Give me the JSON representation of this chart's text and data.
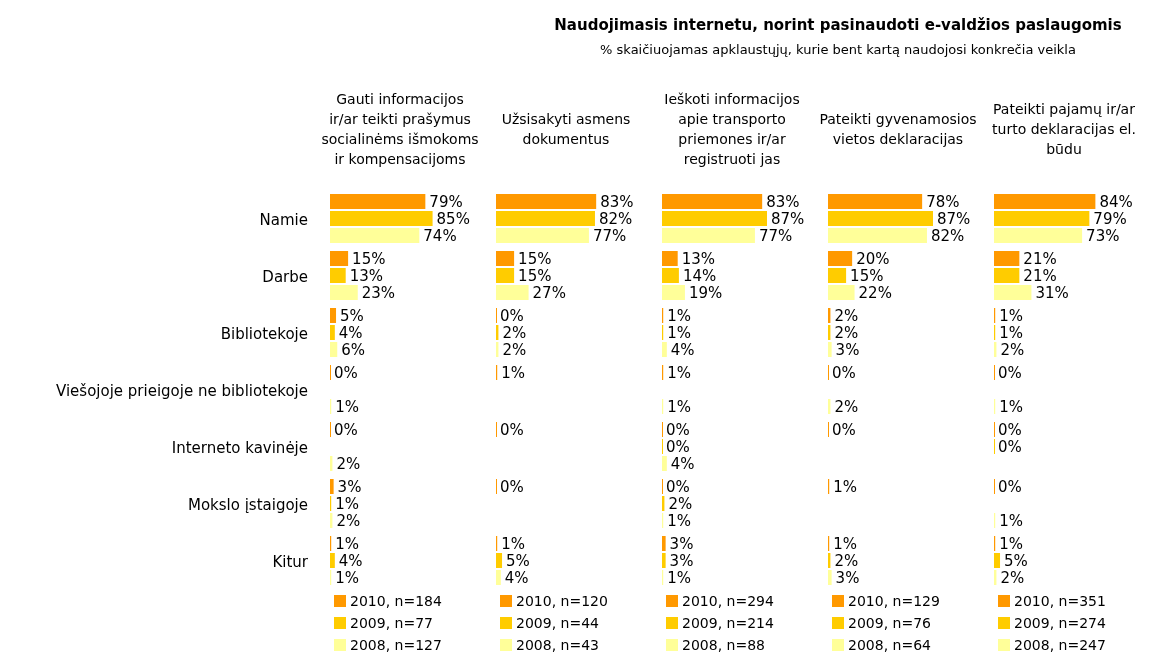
{
  "chart_data": [
    {
      "type": "bar",
      "orientation": "horizontal",
      "title": "Gauti informacijos ir/ar teikti prašymus socialinėms išmokoms ir kompensacijoms",
      "annotations": [
        "Naudojimasis internetu, norint pasinaudoti e-valdžios paslaugomis",
        "% skaičiuojamas apklaustųjų, kurie bent kartą naudojosi konkrečia veikla"
      ],
      "categories": [
        "Namie",
        "Darbe",
        "Bibliotekoje",
        "Viešojoje prieigoje ne bibliotekoje",
        "Interneto kavinėje",
        "Mokslo įstaigoje",
        "Kitur"
      ],
      "tick_labels": "y",
      "legend": "bottom",
      "data_labels": true,
      "series": [
        {
          "name": "2010, n=184",
          "color": "#ff9900",
          "values": [
            79,
            15,
            5,
            0,
            0,
            3,
            1
          ],
          "value_labels": [
            "79%",
            "15%",
            "5%",
            "0%",
            "0%",
            "3%",
            "1%"
          ]
        },
        {
          "name": "2009, n=77",
          "color": "#ffcc00",
          "values": [
            85,
            13,
            4,
            null,
            null,
            1,
            4
          ],
          "value_labels": [
            "85%",
            "13%",
            "4%",
            null,
            null,
            "1%",
            "4%"
          ]
        },
        {
          "name": "2008, n=127",
          "color": "#ffff99",
          "values": [
            74,
            23,
            6,
            1,
            2,
            2,
            1
          ],
          "value_labels": [
            "74%",
            "23%",
            "6%",
            "1%",
            "2%",
            "2%",
            "1%"
          ]
        }
      ]
    },
    {
      "type": "bar",
      "orientation": "horizontal",
      "title": "Užsisakyti asmens dokumentus",
      "tick_labels": false,
      "legend": "bottom",
      "data_labels": true,
      "series": [
        {
          "name": "2010, n=120",
          "color": "#ff9900",
          "values": [
            83,
            15,
            0,
            1,
            0,
            0,
            1
          ],
          "value_labels": [
            "83%",
            "15%",
            "0%",
            "1%",
            "0%",
            "0%",
            "1%"
          ]
        },
        {
          "name": "2009, n=44",
          "color": "#ffcc00",
          "values": [
            82,
            15,
            2,
            null,
            null,
            null,
            5
          ],
          "value_labels": [
            "82%",
            "15%",
            "2%",
            null,
            null,
            null,
            "5%"
          ]
        },
        {
          "name": "2008, n=43",
          "color": "#ffff99",
          "values": [
            77,
            27,
            2,
            null,
            null,
            null,
            4
          ],
          "value_labels": [
            "77%",
            "27%",
            "2%",
            null,
            null,
            null,
            "4%"
          ]
        }
      ]
    },
    {
      "type": "bar",
      "orientation": "horizontal",
      "title": "Ieškoti informacijos apie transporto priemones ir/ar registruoti jas",
      "tick_labels": false,
      "legend": "bottom",
      "data_labels": true,
      "series": [
        {
          "name": "2010, n=294",
          "color": "#ff9900",
          "values": [
            83,
            13,
            1,
            1,
            0,
            0,
            3
          ],
          "value_labels": [
            "83%",
            "13%",
            "1%",
            "1%",
            "0%",
            "0%",
            "3%"
          ]
        },
        {
          "name": "2009, n=214",
          "color": "#ffcc00",
          "values": [
            87,
            14,
            1,
            null,
            0,
            2,
            3
          ],
          "value_labels": [
            "87%",
            "14%",
            "1%",
            null,
            "0%",
            "2%",
            "3%"
          ]
        },
        {
          "name": "2008, n=88",
          "color": "#ffff99",
          "values": [
            77,
            19,
            4,
            1,
            4,
            1,
            1
          ],
          "value_labels": [
            "77%",
            "19%",
            "4%",
            "1%",
            "4%",
            "1%",
            "1%"
          ]
        }
      ]
    },
    {
      "type": "bar",
      "orientation": "horizontal",
      "title": "Pateikti gyvenamosios vietos deklaracijas",
      "tick_labels": false,
      "legend": "bottom",
      "data_labels": true,
      "series": [
        {
          "name": "2010, n=129",
          "color": "#ff9900",
          "values": [
            78,
            20,
            2,
            0,
            0,
            1,
            1
          ],
          "value_labels": [
            "78%",
            "20%",
            "2%",
            "0%",
            "0%",
            "1%",
            "1%"
          ]
        },
        {
          "name": "2009, n=76",
          "color": "#ffcc00",
          "values": [
            87,
            15,
            2,
            null,
            null,
            null,
            2
          ],
          "value_labels": [
            "87%",
            "15%",
            "2%",
            null,
            null,
            null,
            "2%"
          ]
        },
        {
          "name": "2008, n=64",
          "color": "#ffff99",
          "values": [
            82,
            22,
            3,
            2,
            null,
            null,
            3
          ],
          "value_labels": [
            "82%",
            "22%",
            "3%",
            "2%",
            null,
            null,
            "3%"
          ]
        }
      ]
    },
    {
      "type": "bar",
      "orientation": "horizontal",
      "title": "Pateikti pajamų ir/ar turto deklaracijas el. būdu",
      "tick_labels": false,
      "legend": "bottom",
      "data_labels": true,
      "series": [
        {
          "name": "2010, n=351",
          "color": "#ff9900",
          "values": [
            84,
            21,
            1,
            0,
            0,
            0,
            1
          ],
          "value_labels": [
            "84%",
            "21%",
            "1%",
            "0%",
            "0%",
            "0%",
            "1%"
          ]
        },
        {
          "name": "2009, n=274",
          "color": "#ffcc00",
          "values": [
            79,
            21,
            1,
            null,
            0,
            null,
            5
          ],
          "value_labels": [
            "79%",
            "21%",
            "1%",
            null,
            "0%",
            null,
            "5%"
          ]
        },
        {
          "name": "2008, n=247",
          "color": "#ffff99",
          "values": [
            73,
            31,
            2,
            1,
            null,
            1,
            2
          ],
          "value_labels": [
            "73%",
            "31%",
            "2%",
            "1%",
            null,
            "1%",
            "2%"
          ]
        }
      ]
    }
  ]
}
